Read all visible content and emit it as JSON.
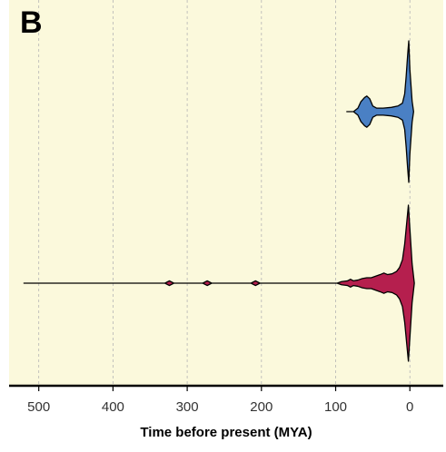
{
  "panel_label": "B",
  "colors": {
    "background": "#fbf9dc",
    "grid": "#b5b5b5",
    "axis": "#000000",
    "series_upper": "#4a80c4",
    "series_lower": "#b51f4e"
  },
  "chart_data": {
    "type": "violin",
    "xlabel": "Time before present (MYA)",
    "ylabel": "",
    "xlim": [
      540,
      -45
    ],
    "x_reversed": true,
    "x_ticks": [
      500,
      400,
      300,
      200,
      100,
      0
    ],
    "x_tick_labels": [
      "500",
      "400",
      "300",
      "200",
      "100",
      "0"
    ],
    "grid": "vertical dashed",
    "legend": "none",
    "series": [
      {
        "color": "#4a80c4",
        "range": [
          85,
          0
        ],
        "density_profile": [
          {
            "mya": 85,
            "half_width": 0.0
          },
          {
            "mya": 76,
            "half_width": 0.0
          },
          {
            "mya": 70,
            "half_width": 0.05
          },
          {
            "mya": 66,
            "half_width": 0.14
          },
          {
            "mya": 61,
            "half_width": 0.2
          },
          {
            "mya": 58,
            "half_width": 0.22
          },
          {
            "mya": 54,
            "half_width": 0.18
          },
          {
            "mya": 50,
            "half_width": 0.08
          },
          {
            "mya": 45,
            "half_width": 0.05
          },
          {
            "mya": 36,
            "half_width": 0.05
          },
          {
            "mya": 25,
            "half_width": 0.06
          },
          {
            "mya": 16,
            "half_width": 0.08
          },
          {
            "mya": 10,
            "half_width": 0.12
          },
          {
            "mya": 7,
            "half_width": 0.25
          },
          {
            "mya": 5,
            "half_width": 0.5
          },
          {
            "mya": 3,
            "half_width": 0.8
          },
          {
            "mya": 1.5,
            "half_width": 1.0
          },
          {
            "mya": 0,
            "half_width": 0.6
          },
          {
            "mya": -3,
            "half_width": 0.15
          },
          {
            "mya": -5,
            "half_width": 0.0
          }
        ]
      },
      {
        "color": "#b51f4e",
        "range": [
          520,
          0
        ],
        "density_profile": [
          {
            "mya": 520,
            "half_width": 0.0
          },
          {
            "mya": 330,
            "half_width": 0.0
          },
          {
            "mya": 324,
            "half_width": 0.03
          },
          {
            "mya": 318,
            "half_width": 0.0
          },
          {
            "mya": 279,
            "half_width": 0.0
          },
          {
            "mya": 273,
            "half_width": 0.03
          },
          {
            "mya": 267,
            "half_width": 0.0
          },
          {
            "mya": 214,
            "half_width": 0.0
          },
          {
            "mya": 208,
            "half_width": 0.03
          },
          {
            "mya": 202,
            "half_width": 0.0
          },
          {
            "mya": 98,
            "half_width": 0.0
          },
          {
            "mya": 92,
            "half_width": 0.02
          },
          {
            "mya": 84,
            "half_width": 0.03
          },
          {
            "mya": 80,
            "half_width": 0.05
          },
          {
            "mya": 76,
            "half_width": 0.03
          },
          {
            "mya": 70,
            "half_width": 0.04
          },
          {
            "mya": 64,
            "half_width": 0.06
          },
          {
            "mya": 58,
            "half_width": 0.07
          },
          {
            "mya": 52,
            "half_width": 0.07
          },
          {
            "mya": 46,
            "half_width": 0.09
          },
          {
            "mya": 40,
            "half_width": 0.11
          },
          {
            "mya": 35,
            "half_width": 0.13
          },
          {
            "mya": 30,
            "half_width": 0.11
          },
          {
            "mya": 24,
            "half_width": 0.12
          },
          {
            "mya": 18,
            "half_width": 0.15
          },
          {
            "mya": 14,
            "half_width": 0.2
          },
          {
            "mya": 10,
            "half_width": 0.3
          },
          {
            "mya": 7,
            "half_width": 0.5
          },
          {
            "mya": 4,
            "half_width": 0.8
          },
          {
            "mya": 2,
            "half_width": 1.0
          },
          {
            "mya": 0,
            "half_width": 0.7
          },
          {
            "mya": -3,
            "half_width": 0.25
          },
          {
            "mya": -6,
            "half_width": 0.0
          }
        ]
      }
    ]
  }
}
